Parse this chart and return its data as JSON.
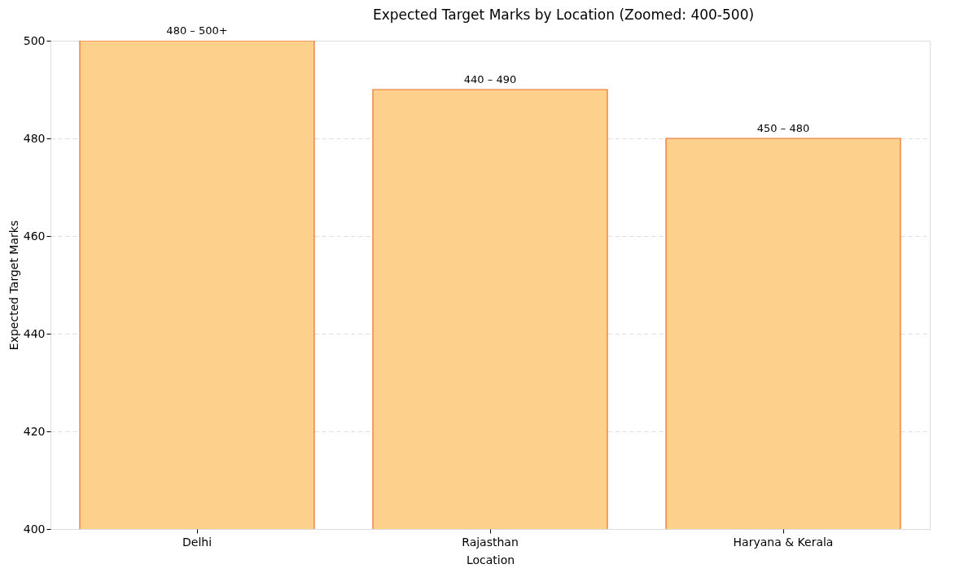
{
  "chart_data": {
    "type": "bar",
    "title": "Expected Target Marks by Location (Zoomed: 400-500)",
    "xlabel": "Location",
    "ylabel": "Expected Target Marks",
    "categories": [
      "Delhi",
      "Rajasthan",
      "Haryana & Kerala"
    ],
    "series": [
      {
        "color": "#fdd08c",
        "values": [
          500,
          490,
          480
        ]
      }
    ],
    "annotations": [
      {
        "text": "480 – 500+",
        "x": "Delhi",
        "y": 500
      },
      {
        "text": "440 – 490",
        "x": "Rajasthan",
        "y": 490
      },
      {
        "text": "450 – 480",
        "x": "Haryana & Kerala",
        "y": 480
      }
    ],
    "ylim": [
      400,
      500
    ],
    "yticks": [
      400,
      420,
      440,
      460,
      480,
      500
    ],
    "grid": "y"
  }
}
